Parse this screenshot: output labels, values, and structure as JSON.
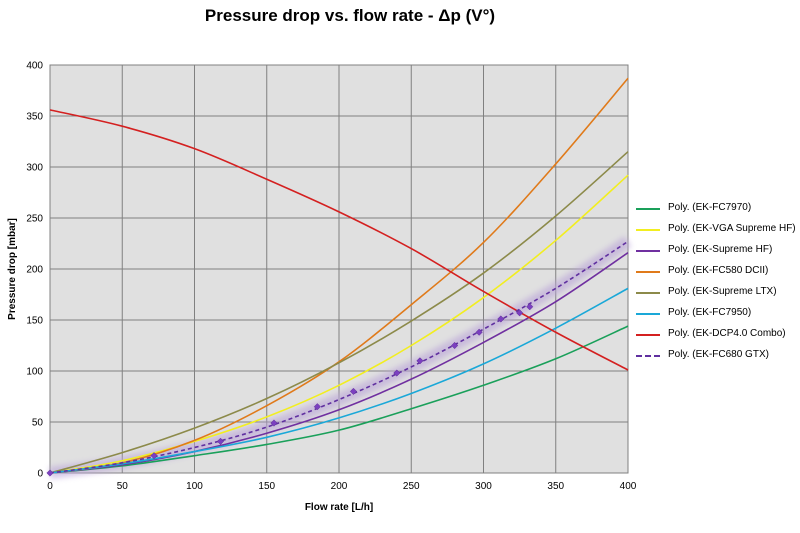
{
  "chart_data": {
    "type": "line",
    "title": "Pressure drop vs. flow rate - Δp (V°)",
    "xlabel": "Flow rate [L/h]",
    "ylabel": "Pressure drop [mbar]",
    "xlim": [
      0,
      400
    ],
    "ylim": [
      0,
      400
    ],
    "xticks": [
      0,
      50,
      100,
      150,
      200,
      250,
      300,
      350,
      400
    ],
    "yticks": [
      0,
      50,
      100,
      150,
      200,
      250,
      300,
      350,
      400
    ],
    "grid": true,
    "plot_background": "#e0e0e0",
    "legend_position": "right",
    "series": [
      {
        "name": "Poly. (EK-FC7970)",
        "color": "#1aa05a",
        "style": "solid",
        "x": [
          0,
          50,
          100,
          150,
          200,
          250,
          300,
          350,
          400
        ],
        "y": [
          0,
          7,
          17,
          28,
          42,
          63,
          86,
          112,
          144
        ]
      },
      {
        "name": "Poly. (EK-VGA Supreme HF)",
        "color": "#f2ee20",
        "style": "solid",
        "x": [
          0,
          50,
          100,
          150,
          200,
          250,
          300,
          350,
          400
        ],
        "y": [
          0,
          12,
          31,
          55,
          86,
          125,
          172,
          228,
          292
        ]
      },
      {
        "name": "Poly. (EK-Supreme HF)",
        "color": "#7030a0",
        "style": "solid",
        "x": [
          0,
          50,
          100,
          150,
          200,
          250,
          300,
          350,
          400
        ],
        "y": [
          0,
          8,
          21,
          39,
          62,
          92,
          128,
          168,
          216
        ]
      },
      {
        "name": "Poly. (EK-FC580 DCII)",
        "color": "#e07a1a",
        "style": "solid",
        "x": [
          0,
          50,
          100,
          150,
          200,
          250,
          300,
          350,
          400
        ],
        "y": [
          0,
          10,
          32,
          66,
          109,
          165,
          226,
          303,
          387
        ]
      },
      {
        "name": "Poly. (EK-Supreme LTX)",
        "color": "#8c8a4a",
        "style": "solid",
        "x": [
          0,
          50,
          100,
          150,
          200,
          250,
          300,
          350,
          400
        ],
        "y": [
          0,
          20,
          44,
          73,
          108,
          149,
          196,
          252,
          315
        ]
      },
      {
        "name": "Poly. (EK-FC7950)",
        "color": "#1aa8d8",
        "style": "solid",
        "x": [
          0,
          50,
          100,
          150,
          200,
          250,
          300,
          350,
          400
        ],
        "y": [
          0,
          9,
          21,
          35,
          54,
          78,
          107,
          142,
          181
        ]
      },
      {
        "name": "Poly. (EK-DCP4.0 Combo)",
        "color": "#d42020",
        "style": "solid",
        "x": [
          0,
          50,
          100,
          150,
          200,
          250,
          300,
          350,
          400
        ],
        "y": [
          356,
          340,
          318,
          288,
          256,
          220,
          178,
          138,
          101
        ]
      },
      {
        "name": "Poly. (EK-FC680 GTX)",
        "color": "#6030a0",
        "style": "dashed",
        "x": [
          0,
          50,
          100,
          150,
          200,
          250,
          300,
          350,
          400
        ],
        "y": [
          0,
          10,
          25,
          45,
          72,
          104,
          141,
          181,
          227
        ],
        "markers": {
          "x": [
            0,
            72,
            118,
            155,
            185,
            210,
            240,
            256,
            280,
            297,
            312,
            325,
            332
          ],
          "y": [
            0,
            17,
            31,
            49,
            65,
            80,
            98,
            110,
            125,
            138,
            151,
            157,
            163
          ]
        }
      }
    ]
  }
}
